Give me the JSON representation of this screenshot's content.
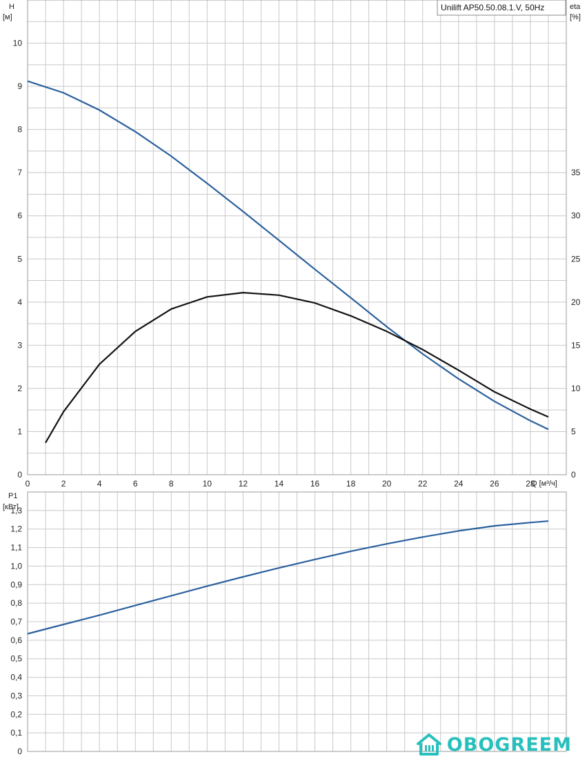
{
  "chart_data": [
    {
      "type": "line",
      "title": "Unilift AP50.50.08.1.V, 50Hz",
      "xlabel": "Q [м³/ч]",
      "ylabel_left": [
        "H",
        "[м]"
      ],
      "ylabel_right": [
        "eta",
        "[%]"
      ],
      "xlim": [
        0,
        30
      ],
      "ylim_left": [
        0,
        11
      ],
      "ylim_right": [
        0,
        55
      ],
      "x_ticks": [
        "0",
        "2",
        "4",
        "6",
        "8",
        "10",
        "12",
        "14",
        "16",
        "18",
        "20",
        "22",
        "24",
        "26",
        "28"
      ],
      "y_ticks_left": [
        "0",
        "1",
        "2",
        "3",
        "4",
        "5",
        "6",
        "7",
        "8",
        "9",
        "10"
      ],
      "y_ticks_right": [
        "0",
        "5",
        "10",
        "15",
        "20",
        "25",
        "30",
        "35"
      ],
      "grid": true,
      "series": [
        {
          "name": "",
          "axis": "left",
          "color": "#2a5f9e",
          "x": [
            0,
            2,
            4,
            6,
            8,
            10,
            12,
            14,
            16,
            18,
            20,
            22,
            24,
            26,
            28,
            29
          ],
          "y": [
            9.12,
            8.85,
            8.45,
            7.95,
            7.38,
            6.75,
            6.1,
            5.43,
            4.76,
            4.1,
            3.43,
            2.8,
            2.22,
            1.7,
            1.25,
            1.05
          ]
        },
        {
          "name": "",
          "axis": "right",
          "color": "#111111",
          "x": [
            1,
            2,
            4,
            6,
            8,
            10,
            12,
            14,
            16,
            18,
            20,
            22,
            24,
            26,
            28,
            29
          ],
          "y": [
            3.7,
            7.3,
            12.8,
            16.6,
            19.2,
            20.6,
            21.1,
            20.8,
            19.9,
            18.4,
            16.6,
            14.5,
            12.1,
            9.6,
            7.6,
            6.7
          ]
        }
      ]
    },
    {
      "type": "line",
      "xlabel": "",
      "ylabel_left": [
        "P1",
        "[кВт]"
      ],
      "xlim": [
        0,
        30
      ],
      "ylim": [
        0,
        1.4
      ],
      "y_ticks": [
        "0",
        "0,1",
        "0,2",
        "0,3",
        "0,4",
        "0,5",
        "0,6",
        "0,7",
        "0,8",
        "0,9",
        "1,0",
        "1,1",
        "1,2",
        "1,3"
      ],
      "grid": true,
      "series": [
        {
          "name": "",
          "color": "#2a5f9e",
          "x": [
            0,
            2,
            4,
            6,
            8,
            10,
            12,
            14,
            16,
            18,
            20,
            22,
            24,
            26,
            28,
            29
          ],
          "y": [
            0.635,
            0.685,
            0.735,
            0.788,
            0.84,
            0.892,
            0.942,
            0.99,
            1.036,
            1.08,
            1.12,
            1.157,
            1.19,
            1.217,
            1.235,
            1.243
          ]
        }
      ]
    }
  ],
  "logo": {
    "text": "OBOGREEM",
    "color": "#27c0bd",
    "icon": "house-radiator-icon"
  }
}
